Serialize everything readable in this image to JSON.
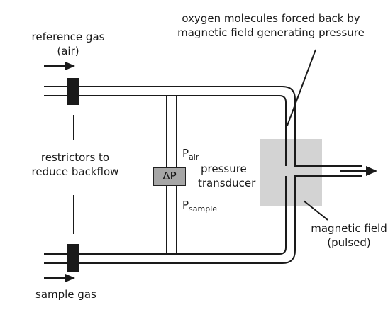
{
  "labels": {
    "oxygen_line1": "oxygen molecules forced back by",
    "oxygen_line2": "magnetic field generating pressure",
    "reference_line1": "reference gas",
    "reference_line2": "(air)",
    "restrictors_line1": "restrictors to",
    "restrictors_line2": "reduce backflow",
    "sample_gas": "sample gas",
    "delta_p": "ΔP",
    "p_air_base": "P",
    "p_air_sub": "air",
    "p_sample_base": "P",
    "p_sample_sub": "sample",
    "pressure_line1": "pressure",
    "pressure_line2": "transducer",
    "magnetic_line1": "magnetic field",
    "magnetic_line2": "(pulsed)"
  },
  "colors": {
    "line": "#1a1a1a",
    "restrictor": "#1a1a1a",
    "magnet_region": "#d3d3d3",
    "transducer": "#a6a6a6"
  }
}
